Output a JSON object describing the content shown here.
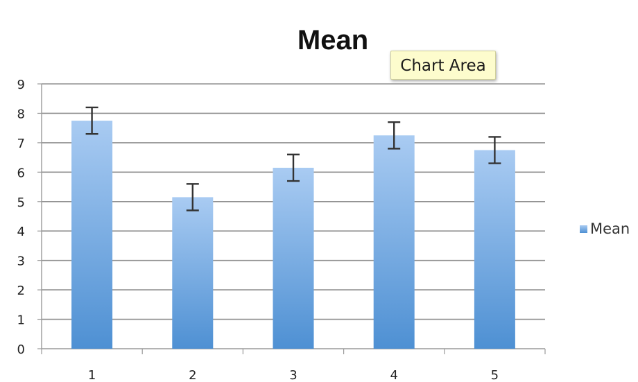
{
  "chart_data": {
    "type": "bar",
    "title": "Mean",
    "xlabel": "",
    "ylabel": "",
    "categories": [
      "1",
      "2",
      "3",
      "4",
      "5"
    ],
    "series": [
      {
        "name": "Mean",
        "values": [
          7.75,
          5.15,
          6.15,
          7.25,
          6.75
        ],
        "error": [
          0.45,
          0.45,
          0.45,
          0.45,
          0.45
        ]
      }
    ],
    "ylim": [
      0,
      9
    ],
    "yticks": [
      0,
      1,
      2,
      3,
      4,
      5,
      6,
      7,
      8,
      9
    ],
    "grid": true,
    "legend": "right",
    "colors": {
      "bar_top": "#a9cbf2",
      "bar_bottom": "#4e90d3",
      "grid": "#8f8f8f",
      "error_bar": "#333333"
    }
  },
  "tooltip": {
    "text": "Chart Area"
  },
  "legend": {
    "label": "Mean"
  }
}
